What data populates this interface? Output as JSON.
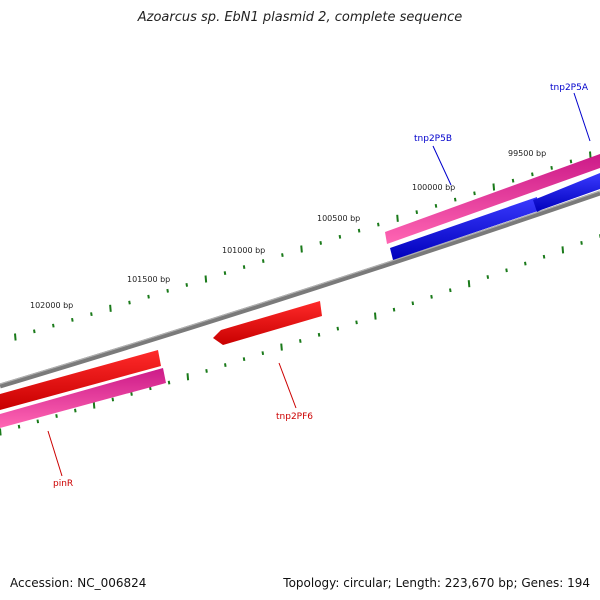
{
  "title": "Azoarcus sp. EbN1 plasmid 2, complete sequence",
  "footer": {
    "accession": "Accession: NC_006824",
    "summary": "Topology: circular; Length: 223,670 bp; Genes: 194"
  },
  "scale_labels": [
    "99500 bp",
    "100000 bp",
    "100500 bp",
    "101000 bp",
    "101500 bp",
    "102000 bp"
  ],
  "genes": [
    {
      "name": "tnp2P5A",
      "color": "#0000cc"
    },
    {
      "name": "tnp2P5B",
      "color": "#0000cc"
    },
    {
      "name": "tnp2PF6",
      "color": "#cc0000"
    },
    {
      "name": "pinR",
      "color": "#cc0000"
    }
  ],
  "colors": {
    "backbone": "#808080",
    "tick": "#1a7a1a",
    "red_gene": "#ff1010",
    "magenta_gene": "#ff3399",
    "blue_gene": "#0000ee"
  }
}
